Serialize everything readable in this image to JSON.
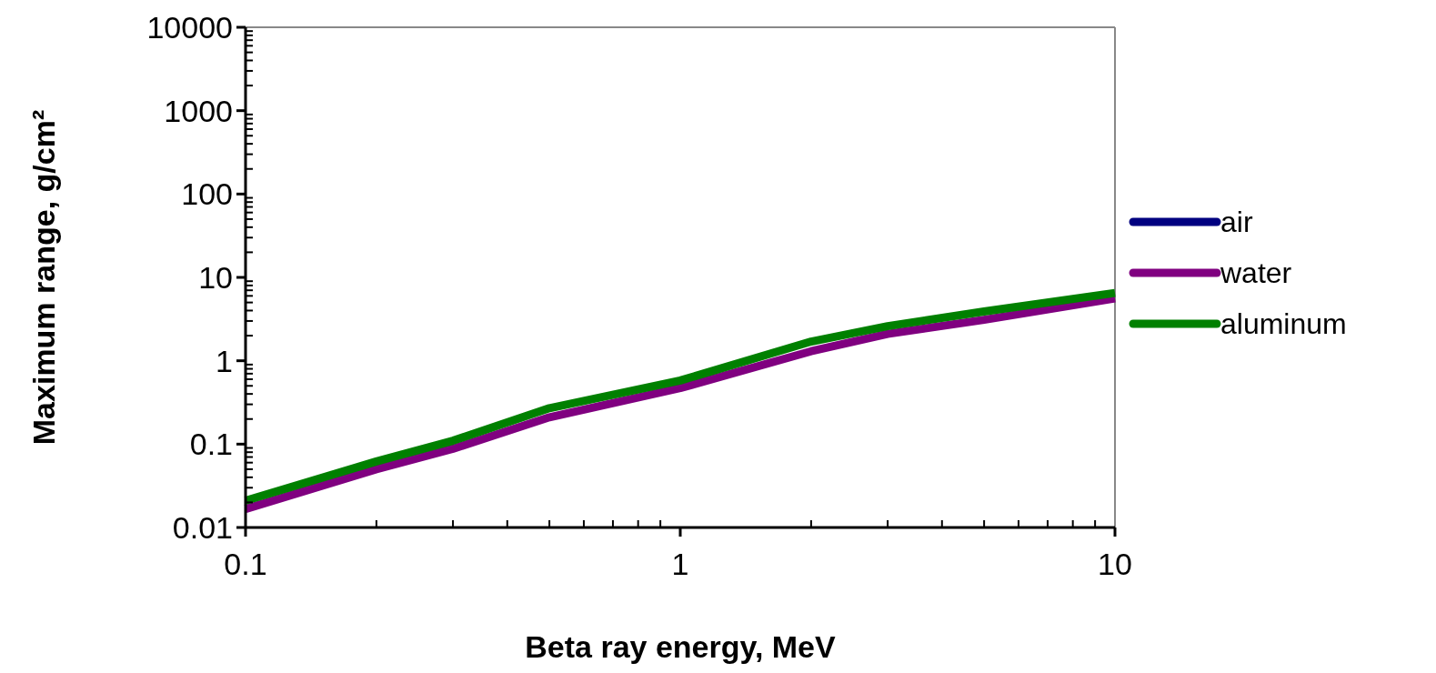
{
  "chart_data": {
    "type": "line",
    "xlabel": "Beta ray energy, MeV",
    "ylabel": "Maximum range, g/cm²",
    "log": "xy",
    "grid": false,
    "legend": "right",
    "line_style": "solid",
    "marker": "none",
    "x": [
      0.1,
      0.2,
      0.3,
      0.5,
      1,
      2,
      3,
      5,
      10
    ],
    "xlim": [
      0.1,
      10
    ],
    "xticks": [
      0.1,
      1,
      10
    ],
    "ylim": [
      0.01,
      10000
    ],
    "yticks": [
      0.01,
      0.1,
      1,
      10,
      100,
      1000,
      10000
    ],
    "series": [
      {
        "name": "air",
        "color": "#000080",
        "values": [
          null,
          null,
          null,
          null,
          null,
          null,
          null,
          null,
          null
        ]
      },
      {
        "name": "water",
        "color": "#800080",
        "values": [
          0.0167,
          0.05,
          0.088,
          0.21,
          0.47,
          1.3,
          2.1,
          3.1,
          5.6
        ]
      },
      {
        "name": "aluminum",
        "color": "#008000",
        "values": [
          0.021,
          0.062,
          0.11,
          0.27,
          0.58,
          1.7,
          2.6,
          3.9,
          6.5
        ]
      }
    ]
  }
}
